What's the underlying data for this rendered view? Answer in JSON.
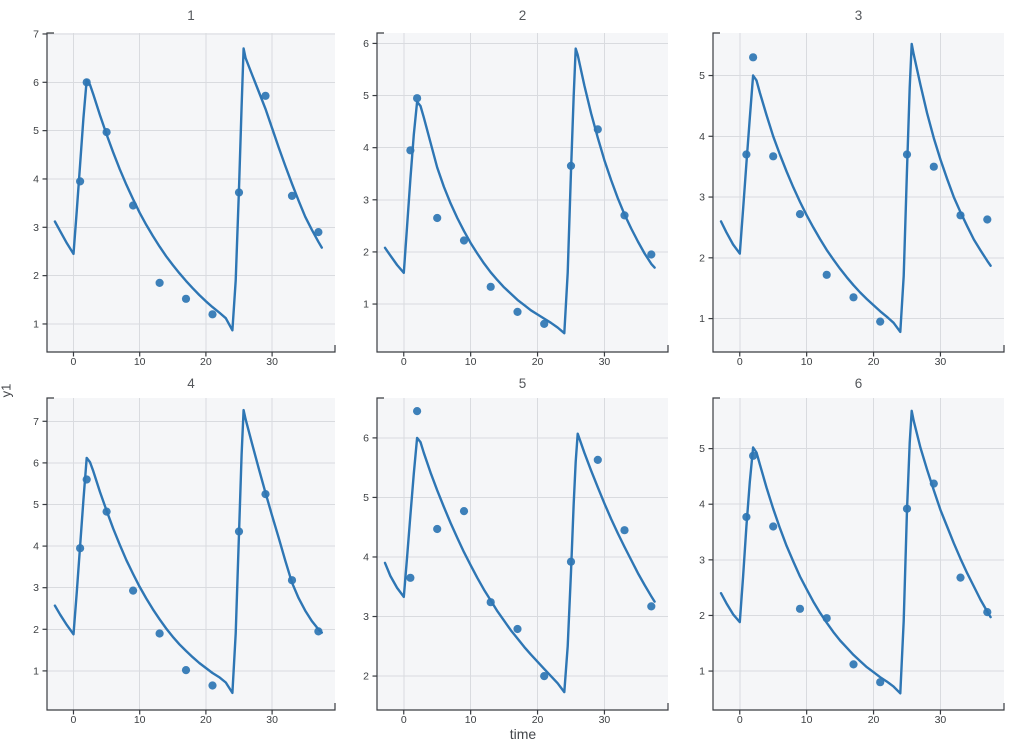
{
  "figure": {
    "xlabel": "time",
    "ylabel": "y1",
    "colors": {
      "panel_bg": "#f5f6f8",
      "grid": "#d9dbdf",
      "spine": "#3a3d42",
      "tick_text": "#3d4043",
      "title_text": "#54575b",
      "series": "#2e76b4"
    }
  },
  "chart_data": [
    {
      "type": "scatter",
      "title": "1",
      "xlim": [
        -4.0,
        39.5
      ],
      "ylim": [
        0.42,
        7.02
      ],
      "xticks": [
        0,
        10,
        20,
        30
      ],
      "yticks": [
        1,
        2,
        3,
        4,
        5,
        6,
        7
      ],
      "points": {
        "x": [
          1,
          2,
          5,
          9,
          13,
          17,
          21,
          25,
          29,
          33,
          37
        ],
        "y": [
          3.95,
          6.0,
          4.97,
          3.45,
          1.85,
          1.52,
          1.2,
          3.72,
          5.72,
          3.65,
          2.9
        ]
      },
      "curve": {
        "x": [
          -2.8,
          -2,
          -1,
          0,
          0.5,
          1,
          1.5,
          2,
          2.5,
          3,
          4,
          5,
          6,
          7,
          8,
          9,
          10,
          11,
          12,
          13,
          14,
          15,
          16,
          17,
          18,
          19,
          20,
          21,
          22,
          23,
          24,
          24.5,
          25,
          25.4,
          25.7,
          26,
          27,
          28,
          29,
          30,
          31,
          32,
          33,
          34,
          35,
          36,
          37,
          37.5
        ],
        "y": [
          3.12,
          2.92,
          2.67,
          2.45,
          3.35,
          4.3,
          5.25,
          6.05,
          5.95,
          5.75,
          5.32,
          4.92,
          4.55,
          4.2,
          3.88,
          3.58,
          3.3,
          3.05,
          2.82,
          2.6,
          2.4,
          2.22,
          2.05,
          1.89,
          1.74,
          1.6,
          1.47,
          1.35,
          1.24,
          1.12,
          0.87,
          1.9,
          3.8,
          5.5,
          6.7,
          6.5,
          6.15,
          5.8,
          5.45,
          5.05,
          4.65,
          4.27,
          3.9,
          3.55,
          3.22,
          2.95,
          2.7,
          2.58
        ]
      }
    },
    {
      "type": "scatter",
      "title": "2",
      "xlim": [
        -4.0,
        39.5
      ],
      "ylim": [
        0.08,
        6.2
      ],
      "xticks": [
        0,
        10,
        20,
        30
      ],
      "yticks": [
        1,
        2,
        3,
        4,
        5,
        6
      ],
      "points": {
        "x": [
          1,
          2,
          5,
          9,
          13,
          17,
          21,
          25,
          29,
          33,
          37
        ],
        "y": [
          3.95,
          4.95,
          2.65,
          2.22,
          1.33,
          0.85,
          0.62,
          3.65,
          4.35,
          2.7,
          1.95
        ]
      },
      "curve": {
        "x": [
          -2.8,
          -2,
          -1,
          0,
          0.5,
          1,
          1.5,
          2,
          2.5,
          3,
          4,
          5,
          6,
          7,
          8,
          9,
          10,
          11,
          12,
          13,
          14,
          15,
          16,
          17,
          18,
          19,
          20,
          21,
          22,
          23,
          24,
          24.5,
          25,
          25.4,
          25.7,
          26,
          27,
          28,
          29,
          30,
          31,
          32,
          33,
          34,
          35,
          36,
          37,
          37.5
        ],
        "y": [
          2.08,
          1.93,
          1.75,
          1.6,
          2.5,
          3.4,
          4.25,
          4.88,
          4.8,
          4.58,
          4.1,
          3.62,
          3.25,
          2.93,
          2.65,
          2.4,
          2.17,
          1.97,
          1.78,
          1.61,
          1.46,
          1.32,
          1.2,
          1.08,
          0.98,
          0.88,
          0.8,
          0.72,
          0.64,
          0.55,
          0.44,
          1.6,
          3.55,
          5.0,
          5.9,
          5.78,
          5.19,
          4.66,
          4.19,
          3.76,
          3.38,
          3.03,
          2.72,
          2.45,
          2.2,
          1.97,
          1.77,
          1.7
        ]
      }
    },
    {
      "type": "scatter",
      "title": "3",
      "xlim": [
        -4.0,
        39.5
      ],
      "ylim": [
        0.45,
        5.7
      ],
      "xticks": [
        0,
        10,
        20,
        30
      ],
      "yticks": [
        1,
        2,
        3,
        4,
        5
      ],
      "points": {
        "x": [
          1,
          2,
          5,
          9,
          13,
          17,
          21,
          25,
          29,
          33,
          37
        ],
        "y": [
          3.7,
          5.3,
          3.67,
          2.72,
          1.72,
          1.35,
          0.95,
          3.7,
          3.5,
          2.7,
          2.63
        ]
      },
      "curve": {
        "x": [
          -2.8,
          -2,
          -1,
          0,
          0.5,
          1,
          1.5,
          2,
          2.5,
          3,
          4,
          5,
          6,
          7,
          8,
          9,
          10,
          11,
          12,
          13,
          14,
          15,
          16,
          17,
          18,
          19,
          20,
          21,
          22,
          23,
          24,
          24.5,
          25,
          25.4,
          25.7,
          26,
          27,
          28,
          29,
          30,
          31,
          32,
          33,
          34,
          35,
          36,
          37,
          37.5
        ],
        "y": [
          2.6,
          2.42,
          2.22,
          2.07,
          2.8,
          3.55,
          4.3,
          5.0,
          4.92,
          4.72,
          4.35,
          4.0,
          3.7,
          3.42,
          3.16,
          2.92,
          2.7,
          2.5,
          2.31,
          2.13,
          1.97,
          1.82,
          1.68,
          1.55,
          1.43,
          1.32,
          1.22,
          1.12,
          1.03,
          0.93,
          0.78,
          1.7,
          3.45,
          4.8,
          5.52,
          5.35,
          4.85,
          4.38,
          3.97,
          3.62,
          3.3,
          3.0,
          2.75,
          2.52,
          2.3,
          2.12,
          1.95,
          1.87
        ]
      }
    },
    {
      "type": "scatter",
      "title": "4",
      "xlim": [
        -4.0,
        39.5
      ],
      "ylim": [
        0.06,
        7.56
      ],
      "xticks": [
        0,
        10,
        20,
        30
      ],
      "yticks": [
        1,
        2,
        3,
        4,
        5,
        6,
        7
      ],
      "points": {
        "x": [
          1,
          2,
          5,
          9,
          13,
          17,
          21,
          25,
          29,
          33,
          37
        ],
        "y": [
          3.95,
          5.6,
          4.83,
          2.93,
          1.9,
          1.02,
          0.65,
          4.35,
          5.25,
          3.18,
          1.95
        ]
      },
      "curve": {
        "x": [
          -2.8,
          -2,
          -1,
          0,
          0.5,
          1,
          1.5,
          2,
          2.5,
          3,
          4,
          5,
          6,
          7,
          8,
          9,
          10,
          11,
          12,
          13,
          14,
          15,
          16,
          17,
          18,
          19,
          20,
          21,
          22,
          23,
          24,
          24.5,
          25,
          25.4,
          25.7,
          26,
          27,
          28,
          29,
          30,
          31,
          32,
          33,
          34,
          35,
          36,
          37,
          37.5
        ],
        "y": [
          2.57,
          2.35,
          2.1,
          1.88,
          2.9,
          4.0,
          5.1,
          6.12,
          6.02,
          5.8,
          5.3,
          4.85,
          4.42,
          4.03,
          3.66,
          3.33,
          3.02,
          2.74,
          2.48,
          2.24,
          2.02,
          1.82,
          1.64,
          1.48,
          1.33,
          1.19,
          1.07,
          0.95,
          0.85,
          0.72,
          0.47,
          1.9,
          4.3,
          6.2,
          7.27,
          7.05,
          6.45,
          5.85,
          5.28,
          4.73,
          4.2,
          3.65,
          3.12,
          2.75,
          2.45,
          2.2,
          2.0,
          1.92
        ]
      }
    },
    {
      "type": "scatter",
      "title": "5",
      "xlim": [
        -4.0,
        39.5
      ],
      "ylim": [
        1.43,
        6.67
      ],
      "xticks": [
        0,
        10,
        20,
        30
      ],
      "yticks": [
        2,
        3,
        4,
        5,
        6
      ],
      "points": {
        "x": [
          1,
          2,
          5,
          9,
          13,
          17,
          21,
          25,
          29,
          33,
          37
        ],
        "y": [
          3.65,
          6.45,
          4.47,
          4.77,
          3.24,
          2.79,
          2.0,
          3.92,
          5.63,
          4.45,
          3.17
        ]
      },
      "curve": {
        "x": [
          -2.8,
          -2,
          -1,
          0,
          0.5,
          1,
          1.5,
          2,
          2.5,
          3,
          4,
          5,
          6,
          7,
          8,
          9,
          10,
          11,
          12,
          13,
          14,
          15,
          16,
          17,
          18,
          19,
          20,
          21,
          22,
          23,
          24,
          24.5,
          25,
          25.4,
          25.7,
          26,
          27,
          28,
          29,
          30,
          31,
          32,
          33,
          34,
          35,
          36,
          37,
          37.5
        ],
        "y": [
          3.9,
          3.68,
          3.48,
          3.33,
          4.0,
          4.7,
          5.4,
          6.0,
          5.93,
          5.75,
          5.42,
          5.12,
          4.84,
          4.57,
          4.32,
          4.08,
          3.86,
          3.65,
          3.45,
          3.27,
          3.09,
          2.93,
          2.77,
          2.63,
          2.49,
          2.36,
          2.24,
          2.12,
          2.0,
          1.88,
          1.73,
          2.5,
          3.75,
          4.9,
          5.6,
          6.07,
          5.75,
          5.45,
          5.17,
          4.9,
          4.64,
          4.4,
          4.17,
          3.95,
          3.73,
          3.53,
          3.34,
          3.25
        ]
      }
    },
    {
      "type": "scatter",
      "title": "6",
      "xlim": [
        -4.0,
        39.5
      ],
      "ylim": [
        0.3,
        5.91
      ],
      "xticks": [
        0,
        10,
        20,
        30
      ],
      "yticks": [
        1,
        2,
        3,
        4,
        5
      ],
      "points": {
        "x": [
          1,
          2,
          5,
          9,
          13,
          17,
          21,
          25,
          29,
          33,
          37
        ],
        "y": [
          3.77,
          4.87,
          3.6,
          2.12,
          1.95,
          1.12,
          0.8,
          3.92,
          4.37,
          2.68,
          2.06
        ]
      },
      "curve": {
        "x": [
          -2.8,
          -2,
          -1,
          0,
          0.5,
          1,
          1.5,
          2,
          2.5,
          3,
          4,
          5,
          6,
          7,
          8,
          9,
          10,
          11,
          12,
          13,
          14,
          15,
          16,
          17,
          18,
          19,
          20,
          21,
          22,
          23,
          24,
          24.5,
          25,
          25.4,
          25.7,
          26,
          27,
          28,
          29,
          30,
          31,
          32,
          33,
          34,
          35,
          36,
          37,
          37.5
        ],
        "y": [
          2.4,
          2.22,
          2.02,
          1.88,
          2.7,
          3.6,
          4.4,
          5.02,
          4.93,
          4.72,
          4.3,
          3.92,
          3.57,
          3.25,
          2.97,
          2.7,
          2.47,
          2.25,
          2.05,
          1.87,
          1.7,
          1.55,
          1.42,
          1.29,
          1.18,
          1.07,
          0.98,
          0.89,
          0.81,
          0.72,
          0.6,
          1.9,
          3.9,
          5.1,
          5.68,
          5.5,
          5.02,
          4.62,
          4.25,
          3.9,
          3.6,
          3.3,
          3.02,
          2.76,
          2.52,
          2.28,
          2.07,
          1.97
        ]
      }
    }
  ]
}
